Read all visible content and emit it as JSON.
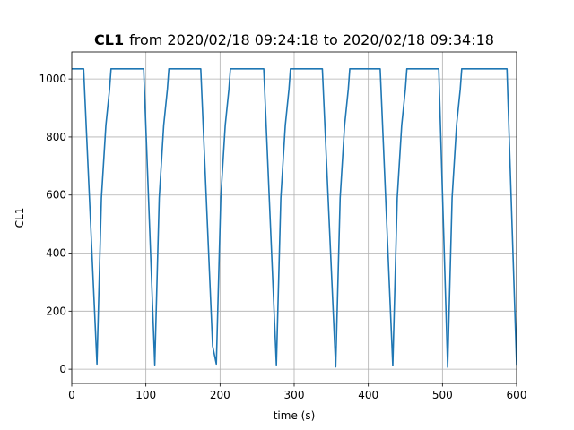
{
  "chart_data": {
    "type": "line",
    "title": [
      "CL1",
      "from 2020/02/18 09:24:18 to 2020/02/18 09:34:18"
    ],
    "x_label": "time (s)",
    "y_label": "CL1",
    "x": [
      0,
      16,
      34,
      40,
      46,
      51,
      53,
      97,
      112,
      118,
      124,
      129,
      131,
      174,
      190,
      195,
      201,
      207,
      212,
      214,
      259,
      276,
      282,
      288,
      293,
      295,
      338,
      356,
      362,
      368,
      373,
      375,
      416,
      433,
      439,
      445,
      450,
      452,
      495,
      507,
      513,
      519,
      524,
      526,
      587,
      600
    ],
    "series": [
      {
        "name": "CL1",
        "color": "#1f77b4",
        "values": [
          1035,
          1035,
          18,
          590,
          840,
          965,
          1035,
          1035,
          15,
          590,
          840,
          965,
          1035,
          1035,
          80,
          18,
          590,
          840,
          965,
          1035,
          1035,
          15,
          590,
          840,
          965,
          1035,
          1035,
          8,
          590,
          840,
          965,
          1035,
          1035,
          12,
          590,
          840,
          965,
          1035,
          1035,
          7,
          590,
          840,
          965,
          1035,
          1035,
          15
        ]
      }
    ],
    "xlim": [
      0,
      600
    ],
    "ylim": [
      -49,
      1093
    ],
    "xticks": [
      0,
      100,
      200,
      300,
      400,
      500,
      600
    ],
    "yticks": [
      0,
      200,
      400,
      600,
      800,
      1000
    ],
    "grid": true
  }
}
